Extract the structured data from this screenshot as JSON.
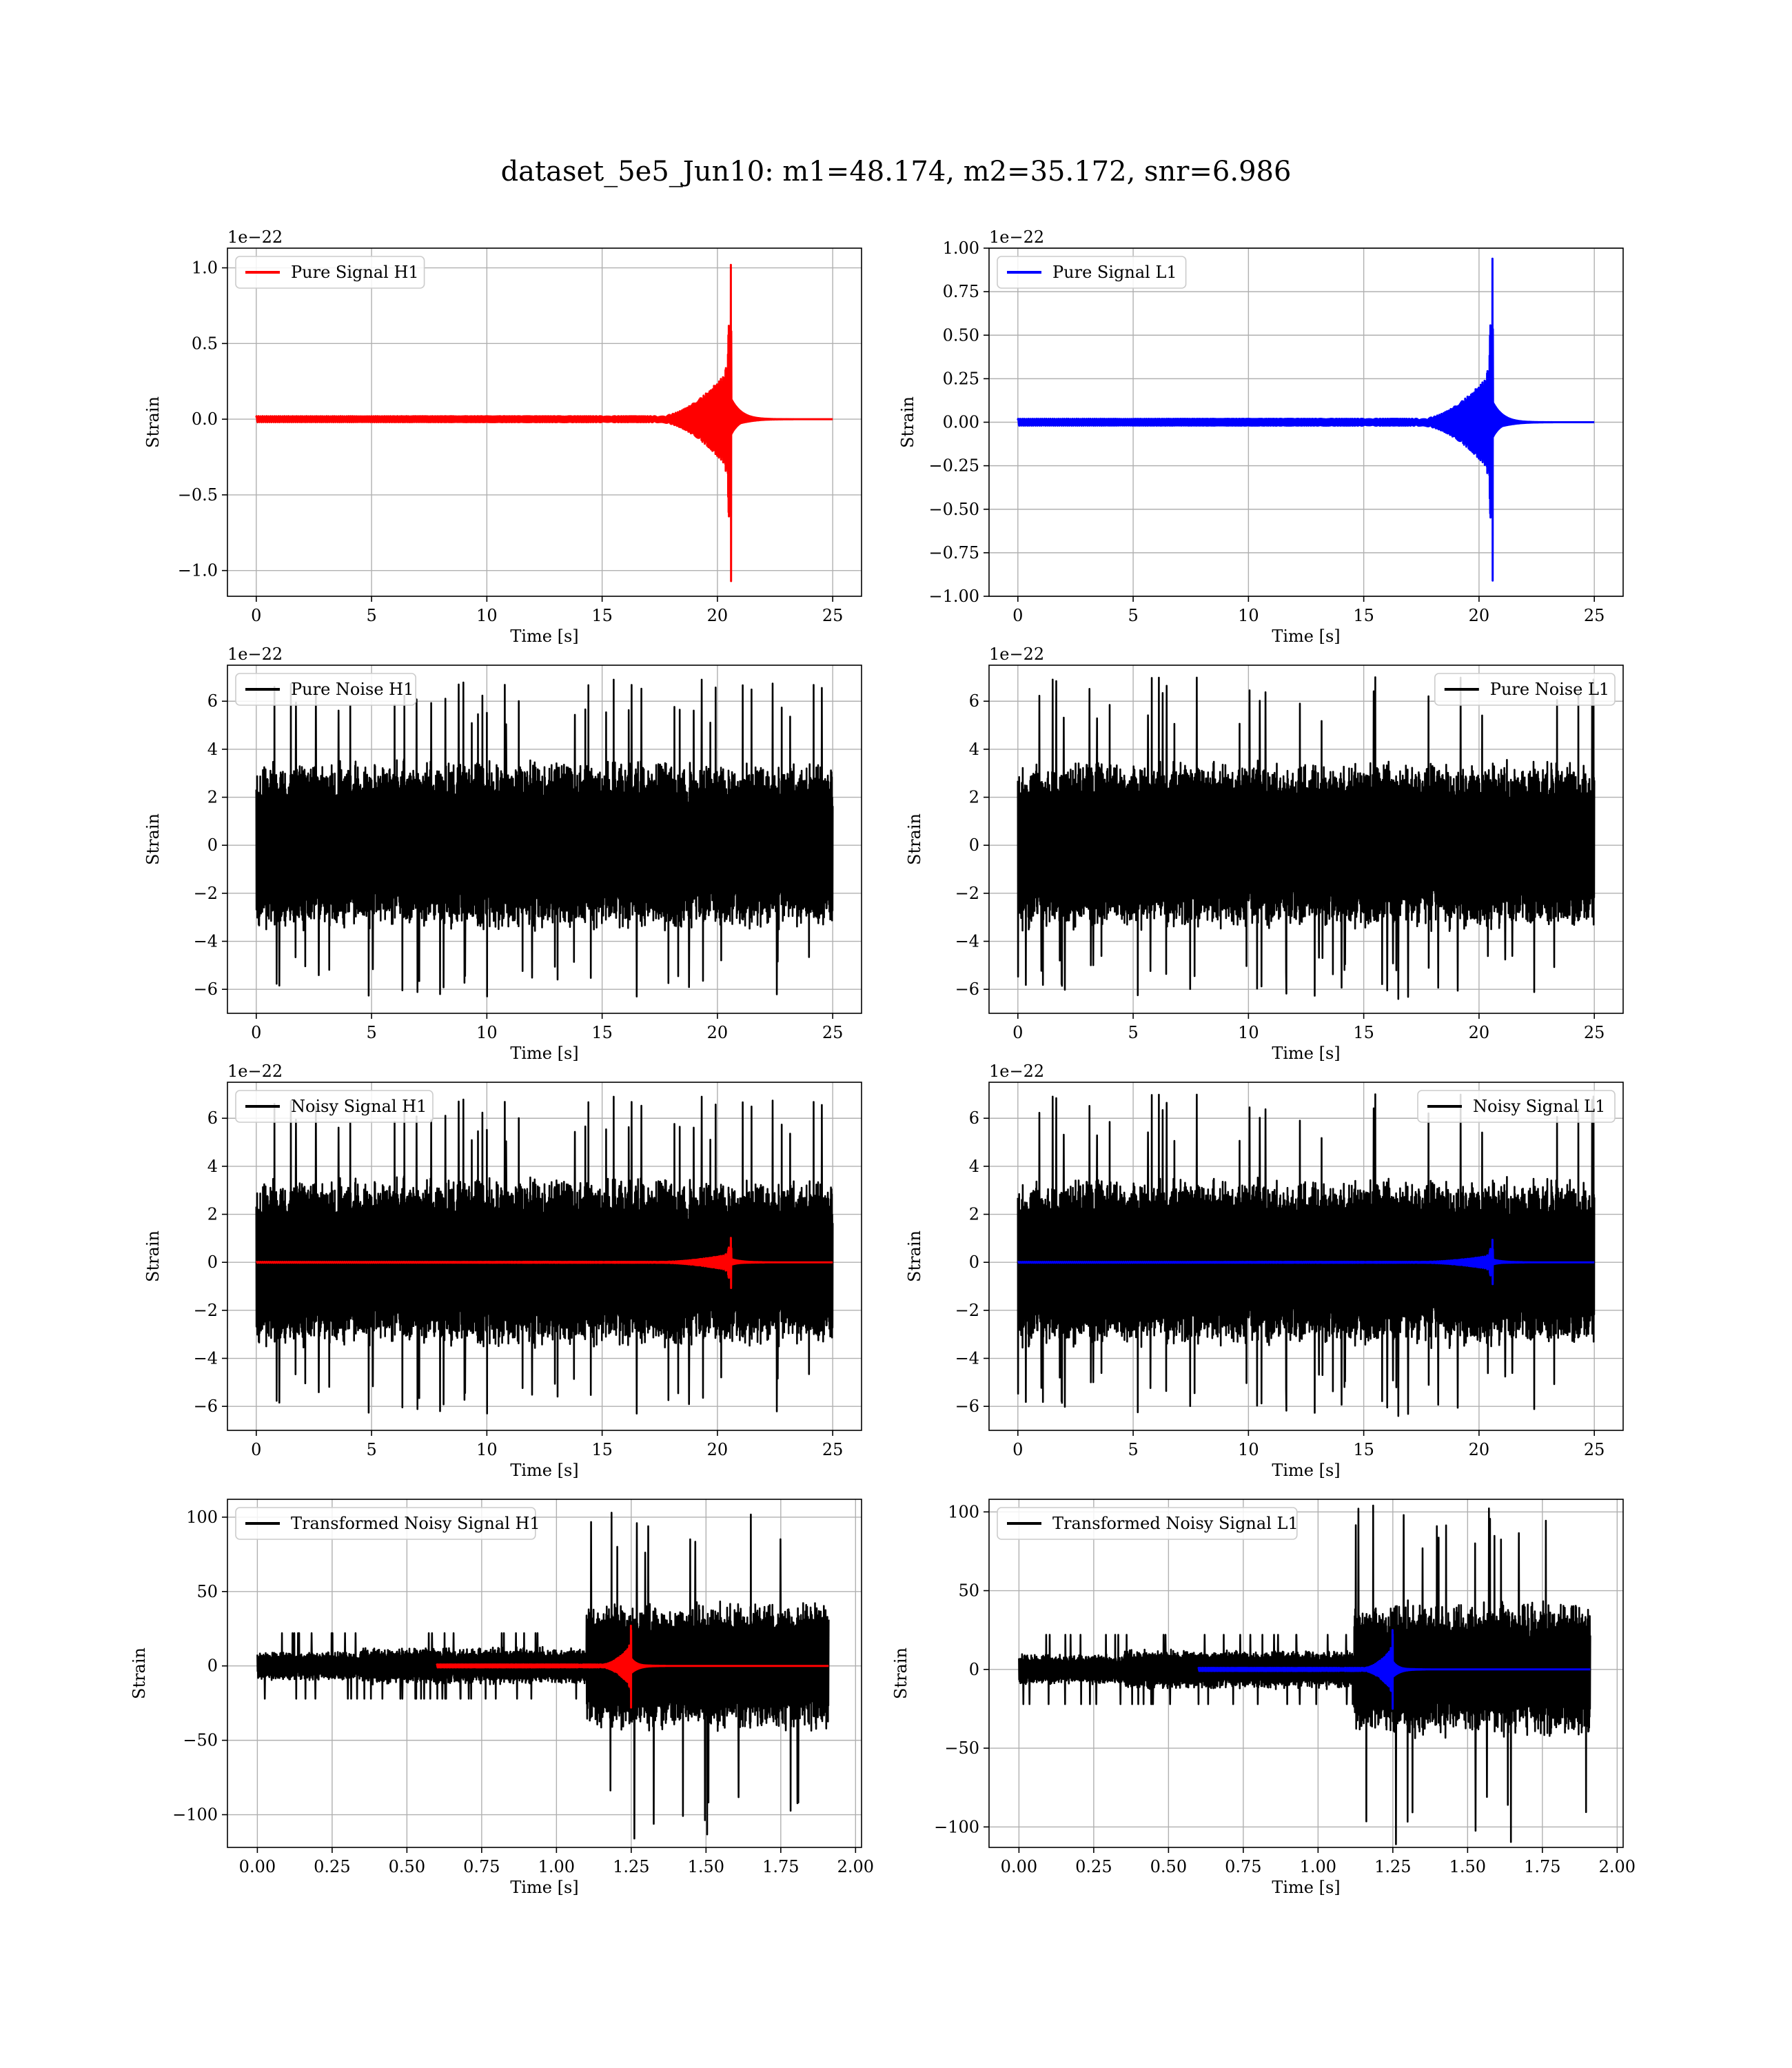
{
  "figure": {
    "title": "dataset_5e5_Jun10: m1=48.174, m2=35.172, snr=6.986"
  },
  "chart_data": [
    {
      "type": "line",
      "panel": "pure-signal-h1",
      "xlabel": "Time [s]",
      "ylabel": "Strain",
      "offset_text": "1e−22",
      "xlim": [
        -1.25,
        26.25
      ],
      "ylim": [
        -1.17,
        1.13
      ],
      "xticks": [
        "0",
        "5",
        "10",
        "15",
        "20",
        "25"
      ],
      "xtick_values": [
        0,
        5,
        10,
        15,
        20,
        25
      ],
      "yticks": [
        "−1.0",
        "−0.5",
        "0.0",
        "0.5",
        "1.0"
      ],
      "ytick_values": [
        -1.0,
        -0.5,
        0.0,
        0.5,
        1.0
      ],
      "legend": {
        "position": "top-left"
      },
      "grid": true,
      "series": [
        {
          "name": "Pure Signal H1",
          "color": "#ff0000",
          "kind": "chirp",
          "x_start": 0,
          "x_merger": 20.6,
          "x_end": 25,
          "amp_early": 0.02,
          "amp_pre": 0.35,
          "amp_peak": [
            1.02,
            -1.07
          ]
        }
      ]
    },
    {
      "type": "line",
      "panel": "pure-signal-l1",
      "xlabel": "Time [s]",
      "ylabel": "Strain",
      "offset_text": "1e−22",
      "xlim": [
        -1.25,
        26.25
      ],
      "ylim": [
        -1.0,
        1.0
      ],
      "xticks": [
        "0",
        "5",
        "10",
        "15",
        "20",
        "25"
      ],
      "xtick_values": [
        0,
        5,
        10,
        15,
        20,
        25
      ],
      "yticks": [
        "−1.00",
        "−0.75",
        "−0.50",
        "−0.25",
        "0.00",
        "0.25",
        "0.50",
        "0.75",
        "1.00"
      ],
      "ytick_values": [
        -1.0,
        -0.75,
        -0.5,
        -0.25,
        0.0,
        0.25,
        0.5,
        0.75,
        1.0
      ],
      "legend": {
        "position": "top-left"
      },
      "grid": true,
      "series": [
        {
          "name": "Pure Signal L1",
          "color": "#0000ff",
          "kind": "chirp",
          "x_start": 0,
          "x_merger": 20.6,
          "x_end": 25,
          "amp_early": 0.02,
          "amp_pre": 0.3,
          "amp_peak": [
            0.94,
            -0.91
          ]
        }
      ]
    },
    {
      "type": "line",
      "panel": "pure-noise-h1",
      "xlabel": "Time [s]",
      "ylabel": "Strain",
      "offset_text": "1e−22",
      "xlim": [
        -1.25,
        26.25
      ],
      "ylim": [
        -7.0,
        7.5
      ],
      "xticks": [
        "0",
        "5",
        "10",
        "15",
        "20",
        "25"
      ],
      "xtick_values": [
        0,
        5,
        10,
        15,
        20,
        25
      ],
      "yticks": [
        "−6",
        "−4",
        "−2",
        "0",
        "2",
        "4",
        "6"
      ],
      "ytick_values": [
        -6,
        -4,
        -2,
        0,
        2,
        4,
        6
      ],
      "legend": {
        "position": "top-left"
      },
      "grid": true,
      "series": [
        {
          "name": "Pure Noise H1",
          "color": "#000000",
          "kind": "noise",
          "x_start": 0,
          "x_end": 25,
          "band": [
            -3.3,
            3.9
          ],
          "max": 6.9,
          "min": -6.3,
          "seed": 11
        }
      ]
    },
    {
      "type": "line",
      "panel": "pure-noise-l1",
      "xlabel": "Time [s]",
      "ylabel": "Strain",
      "offset_text": "1e−22",
      "xlim": [
        -1.25,
        26.25
      ],
      "ylim": [
        -7.0,
        7.5
      ],
      "xticks": [
        "0",
        "5",
        "10",
        "15",
        "20",
        "25"
      ],
      "xtick_values": [
        0,
        5,
        10,
        15,
        20,
        25
      ],
      "yticks": [
        "−6",
        "−4",
        "−2",
        "0",
        "2",
        "4",
        "6"
      ],
      "ytick_values": [
        -6,
        -4,
        -2,
        0,
        2,
        4,
        6
      ],
      "legend": {
        "position": "top-right"
      },
      "grid": true,
      "series": [
        {
          "name": "Pure Noise L1",
          "color": "#000000",
          "kind": "noise",
          "x_start": 0,
          "x_end": 25,
          "band": [
            -3.3,
            3.9
          ],
          "max": 7.0,
          "min": -6.4,
          "seed": 23
        }
      ]
    },
    {
      "type": "line",
      "panel": "noisy-signal-h1",
      "xlabel": "Time [s]",
      "ylabel": "Strain",
      "offset_text": "1e−22",
      "xlim": [
        -1.25,
        26.25
      ],
      "ylim": [
        -7.0,
        7.5
      ],
      "xticks": [
        "0",
        "5",
        "10",
        "15",
        "20",
        "25"
      ],
      "xtick_values": [
        0,
        5,
        10,
        15,
        20,
        25
      ],
      "yticks": [
        "−6",
        "−4",
        "−2",
        "0",
        "2",
        "4",
        "6"
      ],
      "ytick_values": [
        -6,
        -4,
        -2,
        0,
        2,
        4,
        6
      ],
      "legend": {
        "position": "top-left"
      },
      "grid": true,
      "series": [
        {
          "name": "Noisy Signal H1",
          "color": "#000000",
          "kind": "noise",
          "x_start": 0,
          "x_end": 25,
          "band": [
            -3.3,
            3.9
          ],
          "max": 6.9,
          "min": -6.3,
          "seed": 11
        },
        {
          "name": "",
          "color": "#ff0000",
          "kind": "chirp",
          "x_start": 0,
          "x_merger": 20.6,
          "x_end": 25,
          "amp_early": 0.02,
          "amp_pre": 0.35,
          "amp_peak": [
            1.02,
            -1.07
          ]
        }
      ]
    },
    {
      "type": "line",
      "panel": "noisy-signal-l1",
      "xlabel": "Time [s]",
      "ylabel": "Strain",
      "offset_text": "1e−22",
      "xlim": [
        -1.25,
        26.25
      ],
      "ylim": [
        -7.0,
        7.5
      ],
      "xticks": [
        "0",
        "5",
        "10",
        "15",
        "20",
        "25"
      ],
      "xtick_values": [
        0,
        5,
        10,
        15,
        20,
        25
      ],
      "yticks": [
        "−6",
        "−4",
        "−2",
        "0",
        "2",
        "4",
        "6"
      ],
      "ytick_values": [
        -6,
        -4,
        -2,
        0,
        2,
        4,
        6
      ],
      "legend": {
        "position": "top-right"
      },
      "grid": true,
      "series": [
        {
          "name": "Noisy Signal L1",
          "color": "#000000",
          "kind": "noise",
          "x_start": 0,
          "x_end": 25,
          "band": [
            -3.3,
            3.9
          ],
          "max": 7.0,
          "min": -6.4,
          "seed": 23
        },
        {
          "name": "",
          "color": "#0000ff",
          "kind": "chirp",
          "x_start": 0,
          "x_merger": 20.6,
          "x_end": 25,
          "amp_early": 0.02,
          "amp_pre": 0.3,
          "amp_peak": [
            0.94,
            -0.91
          ]
        }
      ]
    },
    {
      "type": "line",
      "panel": "transformed-noisy-signal-h1",
      "xlabel": "Time [s]",
      "ylabel": "Strain",
      "offset_text": "",
      "xlim": [
        -0.1,
        2.02
      ],
      "ylim": [
        -122,
        112
      ],
      "xticks": [
        "0.00",
        "0.25",
        "0.50",
        "0.75",
        "1.00",
        "1.25",
        "1.50",
        "1.75",
        "2.00"
      ],
      "xtick_values": [
        0,
        0.25,
        0.5,
        0.75,
        1.0,
        1.25,
        1.5,
        1.75,
        2.0
      ],
      "yticks": [
        "−100",
        "−50",
        "0",
        "50",
        "100"
      ],
      "ytick_values": [
        -100,
        -50,
        0,
        50,
        100
      ],
      "legend": {
        "position": "top-left"
      },
      "grid": true,
      "series": [
        {
          "name": "Transformed Noisy Signal H1",
          "color": "#000000",
          "kind": "transformed",
          "x_start": 0,
          "x_end": 1.91,
          "x_step": 1.1,
          "amp_low": 10,
          "amp_high": 45,
          "max": 103,
          "min": -116,
          "seed": 37
        },
        {
          "name": "",
          "color": "#ff0000",
          "kind": "chirp",
          "x_start": 0.6,
          "x_merger": 1.25,
          "x_end": 1.91,
          "amp_early": 1,
          "amp_pre": 14,
          "amp_peak": [
            27,
            -28
          ]
        }
      ]
    },
    {
      "type": "line",
      "panel": "transformed-noisy-signal-l1",
      "xlabel": "Time [s]",
      "ylabel": "Strain",
      "offset_text": "",
      "xlim": [
        -0.1,
        2.02
      ],
      "ylim": [
        -113,
        108
      ],
      "xticks": [
        "0.00",
        "0.25",
        "0.50",
        "0.75",
        "1.00",
        "1.25",
        "1.50",
        "1.75",
        "2.00"
      ],
      "xtick_values": [
        0,
        0.25,
        0.5,
        0.75,
        1.0,
        1.25,
        1.5,
        1.75,
        2.0
      ],
      "yticks": [
        "−100",
        "−50",
        "0",
        "50",
        "100"
      ],
      "ytick_values": [
        -100,
        -50,
        0,
        50,
        100
      ],
      "legend": {
        "position": "top-left"
      },
      "grid": true,
      "series": [
        {
          "name": "Transformed Noisy Signal L1",
          "color": "#000000",
          "kind": "transformed",
          "x_start": 0,
          "x_end": 1.91,
          "x_step": 1.12,
          "amp_low": 10,
          "amp_high": 45,
          "max": 104,
          "min": -111,
          "seed": 53
        },
        {
          "name": "",
          "color": "#0000ff",
          "kind": "chirp",
          "x_start": 0.6,
          "x_merger": 1.25,
          "x_end": 1.91,
          "amp_early": 1,
          "amp_pre": 14,
          "amp_peak": [
            25,
            -25
          ]
        }
      ]
    }
  ]
}
